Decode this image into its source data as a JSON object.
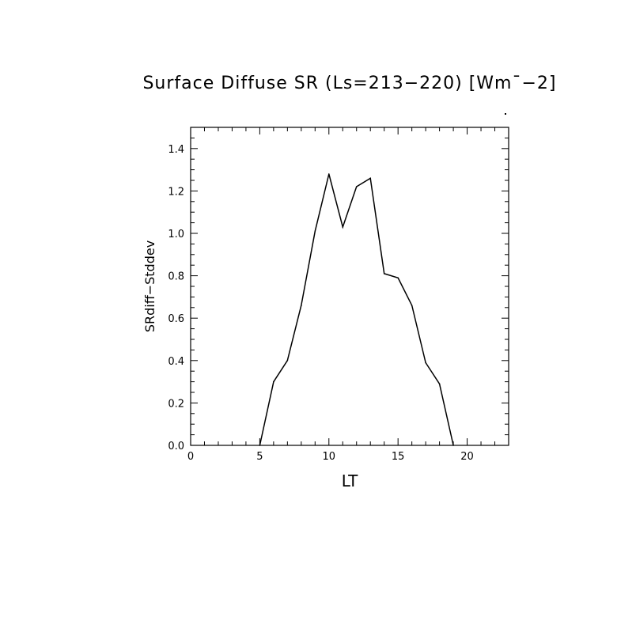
{
  "chart_data": {
    "type": "line",
    "title": "Surface Diffuse SR (Ls=213−220) [Wm¯−2]",
    "xlabel": "LT",
    "ylabel": "SRdiff−Stddev",
    "xlim": [
      0,
      23
    ],
    "ylim": [
      0,
      1.5
    ],
    "x_ticks": [
      0,
      5,
      10,
      15,
      20
    ],
    "y_ticks": [
      0.0,
      0.2,
      0.4,
      0.6,
      0.8,
      1.0,
      1.2,
      1.4
    ],
    "x_tick_labels": [
      "0",
      "5",
      "10",
      "15",
      "20"
    ],
    "y_tick_labels": [
      "0.0",
      "0.2",
      "0.4",
      "0.6",
      "0.8",
      "1.0",
      "1.2",
      "1.4"
    ],
    "grid": false,
    "series": [
      {
        "x": [
          5,
          6,
          7,
          8,
          9,
          10,
          11,
          12,
          13,
          14,
          15,
          16,
          17,
          18,
          19
        ],
        "y": [
          0.0,
          0.3,
          0.4,
          0.66,
          1.01,
          1.28,
          1.03,
          1.22,
          1.26,
          0.81,
          0.79,
          0.66,
          0.39,
          0.29,
          0.0
        ]
      }
    ]
  }
}
